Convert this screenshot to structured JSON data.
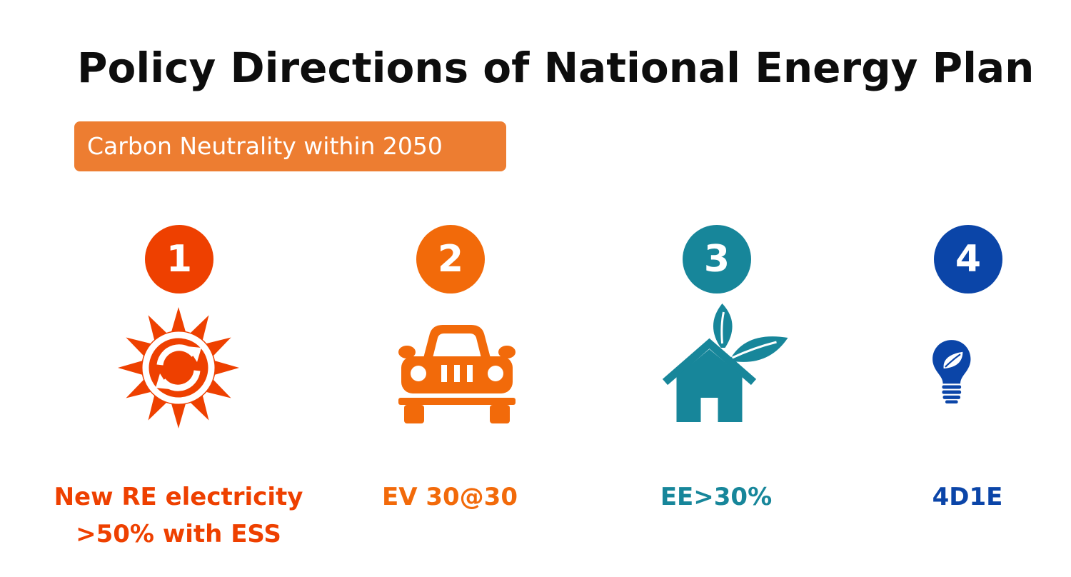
{
  "title": "Policy Directions of National Energy Plan",
  "banner": {
    "text": "Carbon Neutrality within 2050",
    "color": "#ed7d31"
  },
  "pillars": [
    {
      "number": "1",
      "icon": "sun-renewable-icon",
      "label_line1": "New RE electricity",
      "label_line2": ">50% with ESS",
      "color": "#ee4000"
    },
    {
      "number": "2",
      "icon": "car-icon",
      "label_line1": "EV 30@30",
      "color": "#f26a0a"
    },
    {
      "number": "3",
      "icon": "eco-house-icon",
      "label_line1": "EE>30%",
      "color": "#17869a"
    },
    {
      "number": "4",
      "icon": "leaf-lightbulb-icon",
      "label_line1": "4D1E",
      "color": "#0b45a8"
    }
  ]
}
